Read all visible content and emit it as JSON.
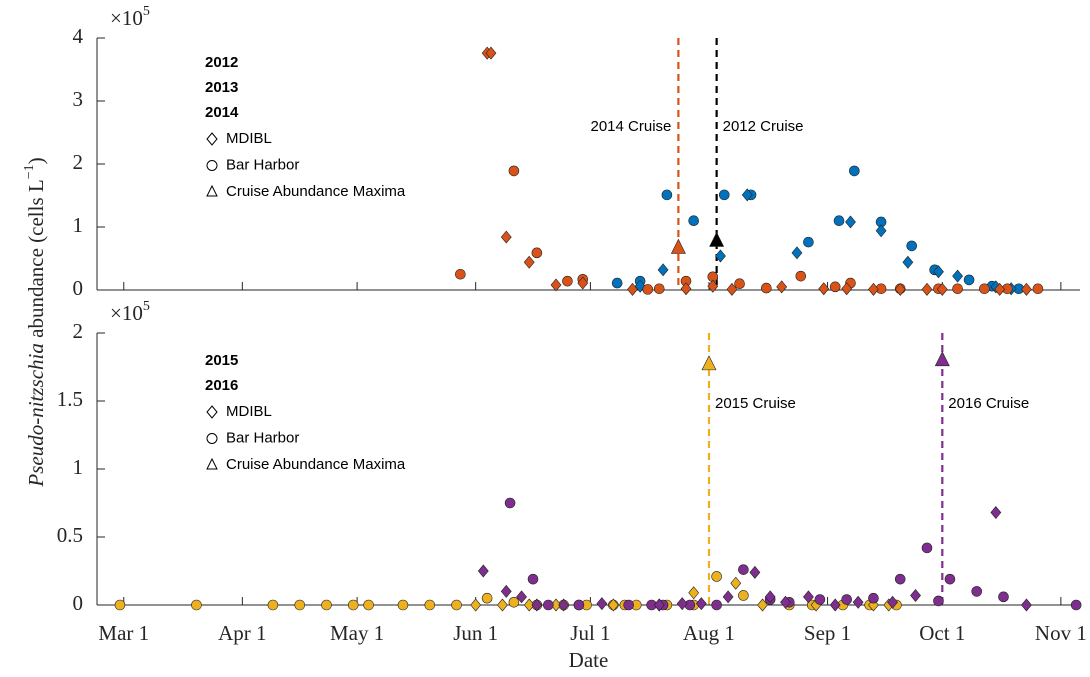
{
  "chart_data": [
    {
      "type": "scatter",
      "multiplier": "×10",
      "multiplier_exp": "5",
      "y_label_italic": "Pseudo-nitzschia",
      "y_label": " abundance (cells L",
      "y_label_exp": "−1",
      "y_label_end": ")",
      "xlim": [
        "Feb 22",
        "Nov 6"
      ],
      "ylim": [
        0,
        4
      ],
      "yticks": [
        0,
        1,
        2,
        3,
        4
      ],
      "marker_legend": [
        {
          "marker": "diamond",
          "label": "MDIBL"
        },
        {
          "marker": "circle",
          "label": "Bar Harbor"
        },
        {
          "marker": "triangle",
          "label": "Cruise Abundance Maxima"
        }
      ],
      "cruises": [
        {
          "label": "2014 Cruise",
          "x": "Jul 24",
          "color": "#D95319"
        },
        {
          "label": "2012 Cruise",
          "x": "Aug 3",
          "color": "#000000"
        }
      ],
      "series": [
        {
          "name": "2012",
          "color": "#000000",
          "groups": [
            {
              "marker": "triangle",
              "x": [
                "Aug 3"
              ],
              "values": [
                0.78
              ]
            }
          ]
        },
        {
          "name": "2013",
          "color": "#0072BD",
          "groups": [
            {
              "marker": "circle",
              "x": [
                "Jul 8",
                "Jul 14",
                "Jul 21",
                "Jul 28",
                "Aug 5",
                "Aug 12",
                "Aug 27",
                "Sep 4",
                "Sep 8",
                "Sep 15",
                "Sep 23",
                "Sep 29",
                "Oct 8",
                "Oct 14",
                "Oct 21"
              ],
              "values": [
                0.11,
                0.14,
                1.51,
                1.1,
                1.51,
                1.51,
                0.76,
                1.1,
                1.89,
                1.08,
                0.7,
                0.32,
                0.16,
                0.06,
                0.02
              ]
            },
            {
              "marker": "diamond",
              "x": [
                "Jul 14",
                "Jul 20",
                "Aug 4",
                "Aug 11",
                "Aug 24",
                "Sep 7",
                "Sep 15",
                "Sep 22",
                "Sep 30",
                "Oct 5",
                "Oct 15",
                "Oct 19"
              ],
              "values": [
                0.06,
                0.32,
                0.54,
                1.51,
                0.59,
                1.08,
                0.94,
                0.44,
                0.29,
                0.22,
                0.05,
                0.02
              ]
            }
          ]
        },
        {
          "name": "2014",
          "color": "#D95319",
          "groups": [
            {
              "marker": "circle",
              "x": [
                "May 28",
                "Jun 11",
                "Jun 17",
                "Jun 25",
                "Jun 29",
                "Jul 16",
                "Jul 19",
                "Jul 26",
                "Aug 2",
                "Aug 9",
                "Aug 16",
                "Aug 25",
                "Sep 3",
                "Sep 7",
                "Sep 15",
                "Sep 20",
                "Sep 30",
                "Oct 5",
                "Oct 12",
                "Oct 18",
                "Oct 26"
              ],
              "values": [
                0.25,
                1.89,
                0.59,
                0.14,
                0.17,
                0.01,
                0.02,
                0.14,
                0.21,
                0.1,
                0.03,
                0.22,
                0.05,
                0.11,
                0.02,
                0.02,
                0.02,
                0.02,
                0.02,
                0.02,
                0.02
              ]
            },
            {
              "marker": "diamond",
              "x": [
                "Jun 4",
                "Jun 5",
                "Jun 9",
                "Jun 15",
                "Jun 22",
                "Jun 29",
                "Jul 12",
                "Jul 26",
                "Aug 2",
                "Aug 7",
                "Aug 20",
                "Aug 31",
                "Sep 6",
                "Sep 13",
                "Sep 20",
                "Sep 27",
                "Oct 1",
                "Oct 16",
                "Oct 23"
              ],
              "values": [
                3.76,
                3.76,
                0.84,
                0.44,
                0.08,
                0.11,
                0.01,
                0.02,
                0.06,
                0.01,
                0.05,
                0.02,
                0.02,
                0.01,
                0.01,
                0.01,
                0.01,
                0.01,
                0.01
              ]
            },
            {
              "marker": "triangle",
              "x": [
                "Jul 24"
              ],
              "values": [
                0.67
              ]
            }
          ]
        }
      ]
    },
    {
      "type": "scatter",
      "multiplier": "×10",
      "multiplier_exp": "5",
      "x_label": "Date",
      "xlim": [
        "Feb 22",
        "Nov 6"
      ],
      "ylim": [
        0,
        2
      ],
      "yticks": [
        0,
        0.5,
        1,
        1.5,
        2
      ],
      "xticks": [
        "Mar 1",
        "Apr 1",
        "May 1",
        "Jun 1",
        "Jul 1",
        "Aug 1",
        "Sep 1",
        "Oct 1",
        "Nov 1"
      ],
      "marker_legend": [
        {
          "marker": "diamond",
          "label": "MDIBL"
        },
        {
          "marker": "circle",
          "label": "Bar Harbor"
        },
        {
          "marker": "triangle",
          "label": "Cruise Abundance Maxima"
        }
      ],
      "cruises": [
        {
          "label": "2015 Cruise",
          "x": "Aug 1",
          "color": "#EDB120"
        },
        {
          "label": "2016 Cruise",
          "x": "Oct 1",
          "color": "#7E2F8E"
        }
      ],
      "series": [
        {
          "name": "2015",
          "color": "#EDB120",
          "groups": [
            {
              "marker": "circle",
              "x": [
                "Feb 28",
                "Mar 20",
                "Apr 9",
                "Apr 16",
                "Apr 23",
                "Apr 30",
                "May 4",
                "May 13",
                "May 20",
                "May 27",
                "Jun 4",
                "Jun 11",
                "Jun 17",
                "Jun 24",
                "Jun 28",
                "Jun 30",
                "Jul 7",
                "Jul 10",
                "Jul 13",
                "Jul 21",
                "Jul 28",
                "Aug 3",
                "Aug 10",
                "Aug 22",
                "Aug 28",
                "Sep 5",
                "Sep 12",
                "Sep 19"
              ],
              "values": [
                0,
                0,
                0,
                0,
                0,
                0,
                0,
                0,
                0,
                0,
                0.05,
                0.02,
                0,
                0,
                0,
                0,
                0,
                0,
                0,
                0,
                0,
                0.21,
                0.07,
                0,
                0,
                0,
                0,
                0
              ]
            },
            {
              "marker": "diamond",
              "x": [
                "Jun 1",
                "Jun 8",
                "Jun 15",
                "Jun 22",
                "Jul 7",
                "Jul 19",
                "Jul 28",
                "Aug 8",
                "Aug 15",
                "Aug 29",
                "Sep 13",
                "Sep 17"
              ],
              "values": [
                0,
                0,
                0,
                0,
                0,
                0,
                0.09,
                0.16,
                0,
                0,
                0,
                0
              ]
            },
            {
              "marker": "triangle",
              "x": [
                "Aug 1"
              ],
              "values": [
                1.77
              ]
            }
          ]
        },
        {
          "name": "2016",
          "color": "#7E2F8E",
          "groups": [
            {
              "marker": "circle",
              "x": [
                "Jun 10",
                "Jun 16",
                "Jun 20",
                "Jun 28",
                "Jul 11",
                "Jul 17",
                "Jul 20",
                "Jul 27",
                "Aug 3",
                "Aug 10",
                "Aug 17",
                "Aug 22",
                "Aug 30",
                "Sep 6",
                "Sep 13",
                "Sep 20",
                "Sep 27",
                "Sep 30",
                "Oct 3",
                "Oct 10",
                "Oct 17",
                "Nov 5"
              ],
              "values": [
                0.75,
                0.19,
                0,
                0,
                0,
                0,
                0,
                0,
                0,
                0.26,
                0.04,
                0.02,
                0.04,
                0.04,
                0.05,
                0.19,
                0.42,
                0.03,
                0.19,
                0.1,
                0.06,
                0
              ]
            },
            {
              "marker": "diamond",
              "x": [
                "Jun 3",
                "Jun 9",
                "Jun 13",
                "Jun 17",
                "Jun 24",
                "Jul 4",
                "Jul 19",
                "Jul 25",
                "Jul 30",
                "Aug 6",
                "Aug 13",
                "Aug 17",
                "Aug 21",
                "Aug 27",
                "Sep 3",
                "Sep 9",
                "Sep 18",
                "Sep 24",
                "Oct 15",
                "Oct 23"
              ],
              "values": [
                0.25,
                0.1,
                0.06,
                0,
                0,
                0.01,
                0,
                0.01,
                0.01,
                0.06,
                0.24,
                0.06,
                0.02,
                0.06,
                0,
                0.02,
                0.02,
                0.07,
                0.68,
                0
              ]
            },
            {
              "marker": "triangle",
              "x": [
                "Oct 1"
              ],
              "values": [
                1.8
              ]
            }
          ]
        }
      ]
    }
  ]
}
